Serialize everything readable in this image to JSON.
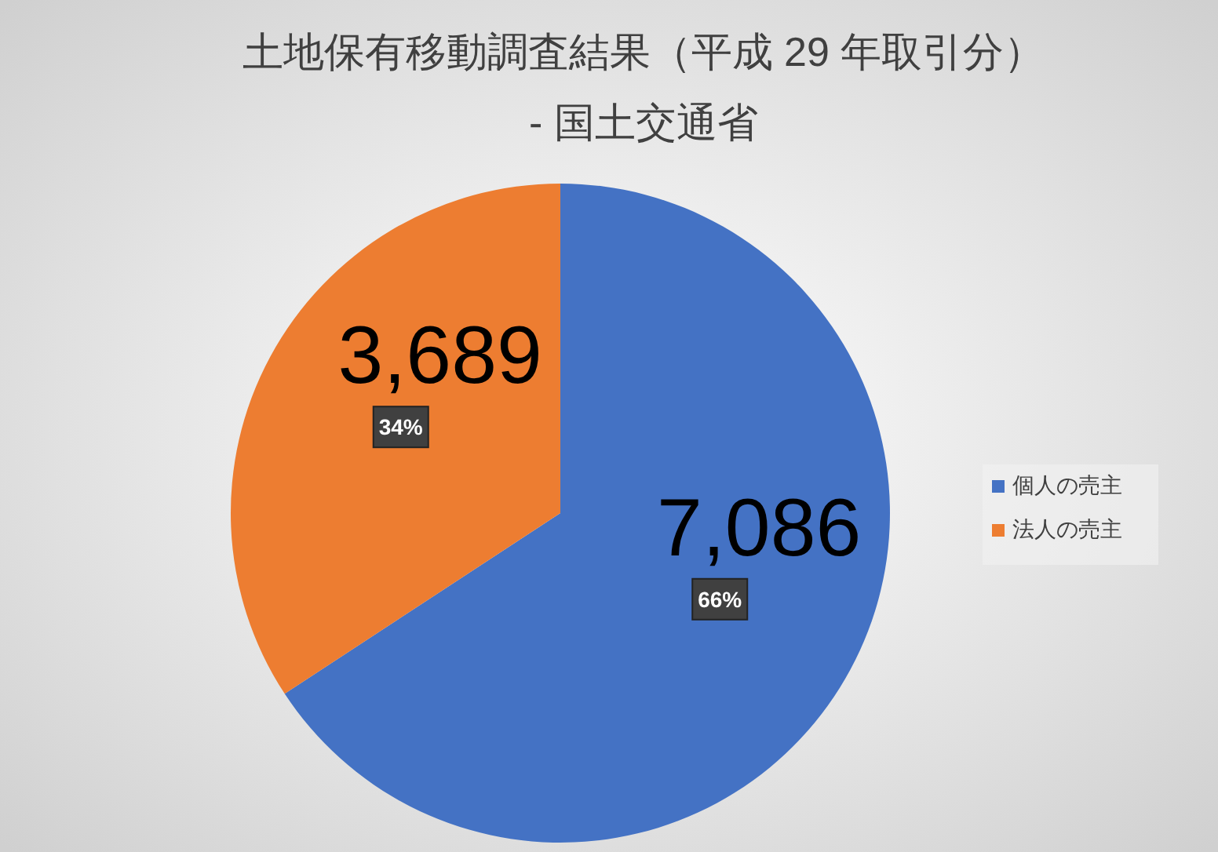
{
  "chart_data": {
    "type": "pie",
    "title": "土地保有移動調査結果（平成 29 年取引分）\n- 国土交通省",
    "categories": [
      "個人の売主",
      "法人の売主"
    ],
    "values": [
      7086,
      3689
    ],
    "colors": [
      "#4472c4",
      "#ed7d31"
    ],
    "value_labels": [
      "7,086",
      "3,689"
    ],
    "annotations": [
      "66%",
      "34%"
    ],
    "legend": "right"
  }
}
